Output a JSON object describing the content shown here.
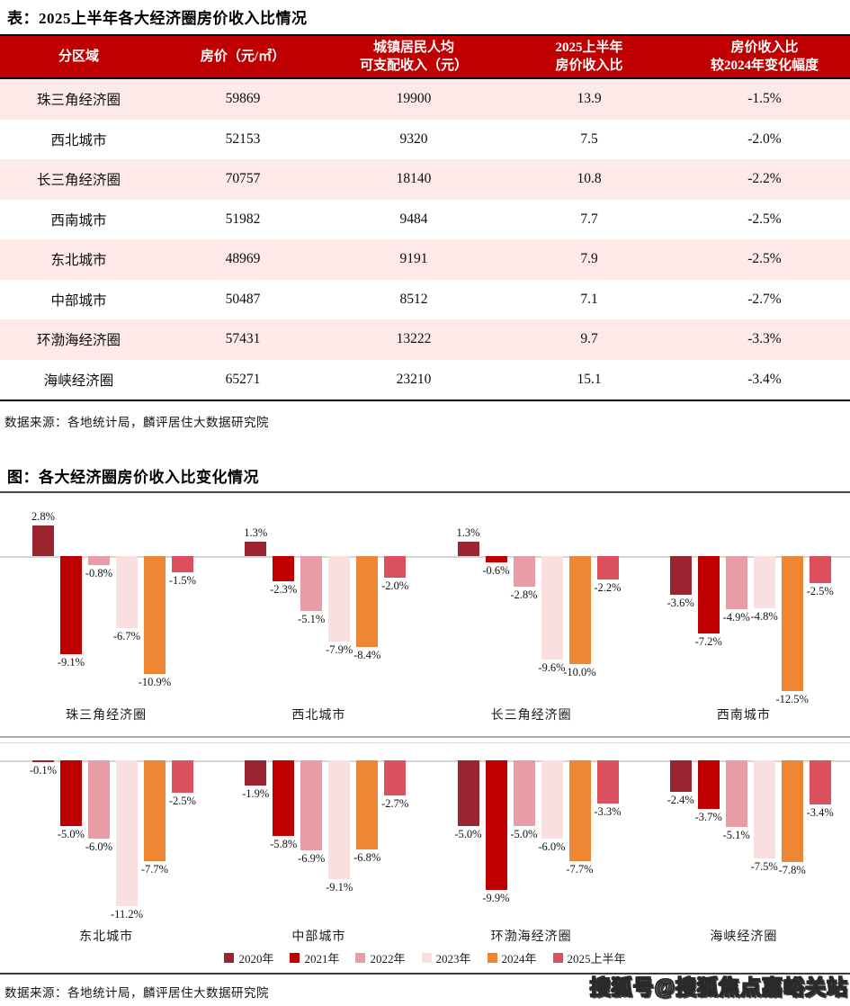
{
  "table": {
    "title": "表：2025上半年各大经济圈房价收入比情况",
    "headers": [
      [
        "分区域"
      ],
      [
        "房价（元/㎡）"
      ],
      [
        "城镇居民人均",
        "可支配收入（元）"
      ],
      [
        "2025上半年",
        "房价收入比"
      ],
      [
        "房价收入比",
        "较2024年变化幅度"
      ]
    ],
    "rows": [
      [
        "珠三角经济圈",
        "59869",
        "19900",
        "13.9",
        "-1.5%"
      ],
      [
        "西北城市",
        "52153",
        "9320",
        "7.5",
        "-2.0%"
      ],
      [
        "长三角经济圈",
        "70757",
        "18140",
        "10.8",
        "-2.2%"
      ],
      [
        "西南城市",
        "51982",
        "9484",
        "7.7",
        "-2.5%"
      ],
      [
        "东北城市",
        "48969",
        "9191",
        "7.9",
        "-2.5%"
      ],
      [
        "中部城市",
        "50487",
        "8512",
        "7.1",
        "-2.7%"
      ],
      [
        "环渤海经济圈",
        "57431",
        "13222",
        "9.7",
        "-3.3%"
      ],
      [
        "海峡经济圈",
        "65271",
        "23210",
        "15.1",
        "-3.4%"
      ]
    ],
    "header_bg": "#C00000",
    "row_alt_bg": "#FCE9E8"
  },
  "chart_data": {
    "type": "bar",
    "title": "图：各大经济圈房价收入比变化情况",
    "unit": "%",
    "legend": [
      "2020年",
      "2021年",
      "2022年",
      "2023年",
      "2024年",
      "2025上半年"
    ],
    "colors": [
      "#9A2530",
      "#C00000",
      "#E89CA5",
      "#FADFE1",
      "#EE8633",
      "#DC4F5F"
    ],
    "legend_position": "bottom",
    "grid": false,
    "groups": [
      {
        "name": "珠三角经济圈",
        "values": [
          2.8,
          -9.1,
          -0.8,
          -6.7,
          -10.9,
          -1.5
        ]
      },
      {
        "name": "西北城市",
        "values": [
          1.3,
          -2.3,
          -5.1,
          -7.9,
          -8.4,
          -2.0
        ]
      },
      {
        "name": "长三角经济圈",
        "values": [
          1.3,
          -0.6,
          -2.8,
          -9.6,
          -10.0,
          -2.2
        ]
      },
      {
        "name": "西南城市",
        "values": [
          -3.6,
          -7.2,
          -4.9,
          -4.8,
          -12.5,
          -2.5
        ]
      },
      {
        "name": "东北城市",
        "values": [
          -0.1,
          -5.0,
          -6.0,
          -11.2,
          -7.7,
          -2.5
        ]
      },
      {
        "name": "中部城市",
        "values": [
          -1.9,
          -5.8,
          -6.9,
          -9.1,
          -6.8,
          -2.7
        ]
      },
      {
        "name": "环渤海经济圈",
        "values": [
          -5.0,
          -9.9,
          -5.0,
          -6.0,
          -7.7,
          -3.3
        ]
      },
      {
        "name": "海峡经济圈",
        "values": [
          -2.4,
          -3.7,
          -5.1,
          -7.5,
          -7.8,
          -3.4
        ]
      }
    ]
  },
  "sources": {
    "table_source": "数据来源：各地统计局，麟评居住大数据研究院",
    "chart_source": "数据来源：各地统计局，麟评居住大数据研究院"
  },
  "watermark": "搜狐号@搜狐焦点嘉峪关站"
}
